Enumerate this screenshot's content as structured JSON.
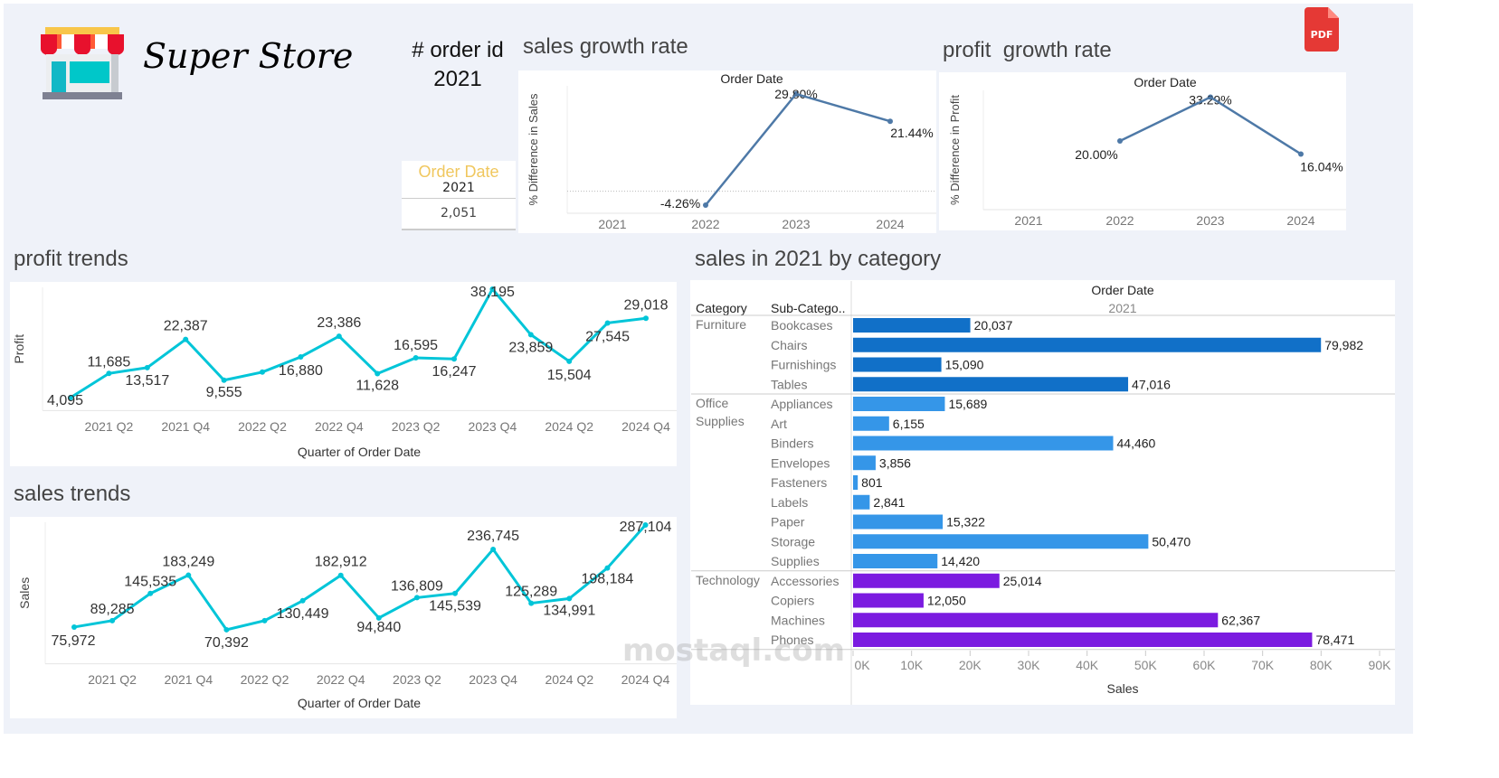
{
  "brand": {
    "title": "Super Store",
    "logo_icon": "storefront-icon"
  },
  "kpi": {
    "label": "# order id",
    "year": "2021",
    "table_header": "Order Date",
    "table_year": "2021",
    "value": "2,051",
    "header_color": "#f0c75e"
  },
  "export": {
    "icon": "pdf-icon",
    "label": "PDF",
    "color": "#e53935"
  },
  "watermark": "mostaql.com",
  "chart_data": [
    {
      "id": "sales_growth",
      "type": "line",
      "title": "sales growth rate",
      "top_label": "Order Date",
      "ylabel": "% Difference in Sales",
      "categories": [
        "2021",
        "2022",
        "2023",
        "2024"
      ],
      "values": [
        null,
        -4.26,
        29.8,
        21.44
      ],
      "labels": [
        "",
        "-4.26%",
        "29.80%",
        "21.44%"
      ],
      "zero_line": true,
      "color": "#4e79a7"
    },
    {
      "id": "profit_growth",
      "type": "line",
      "title": "profit  growth rate",
      "top_label": "Order Date",
      "ylabel": "% Difference in Profit",
      "categories": [
        "2021",
        "2022",
        "2023",
        "2024"
      ],
      "values": [
        null,
        20.0,
        33.29,
        16.04
      ],
      "labels": [
        "",
        "20.00%",
        "33.29%",
        "16.04%"
      ],
      "color": "#4e79a7"
    },
    {
      "id": "profit_trends",
      "type": "line",
      "title": "profit trends",
      "ylabel": "Profit",
      "xlabel": "Quarter of Order Date",
      "tick_labels": [
        "2021 Q2",
        "2021 Q4",
        "2022 Q2",
        "2022 Q4",
        "2023 Q2",
        "2023 Q4",
        "2024 Q2",
        "2024 Q4"
      ],
      "x": [
        "2021 Q1",
        "2021 Q2",
        "2021 Q3",
        "2021 Q4",
        "2022 Q1",
        "2022 Q2",
        "2022 Q3",
        "2022 Q4",
        "2023 Q1",
        "2023 Q2",
        "2023 Q3",
        "2023 Q4",
        "2024 Q1",
        "2024 Q2",
        "2024 Q3",
        "2024 Q4"
      ],
      "values": [
        4095,
        11685,
        13517,
        22387,
        9555,
        12100,
        16880,
        23386,
        11628,
        16595,
        16247,
        38195,
        23859,
        15504,
        27545,
        29018
      ],
      "labels": [
        "4,095",
        "11,685",
        "13,517",
        "22,387",
        "9,555",
        "",
        "16,880",
        "23,386",
        "11,628",
        "16,595",
        "16,247",
        "38,195",
        "23,859",
        "15,504",
        "27,545",
        "29,018"
      ],
      "color": "#00c5d8"
    },
    {
      "id": "sales_trends",
      "type": "line",
      "title": "sales trends",
      "ylabel": "Sales",
      "xlabel": "Quarter of Order Date",
      "tick_labels": [
        "2021 Q2",
        "2021 Q4",
        "2022 Q2",
        "2022 Q4",
        "2023 Q2",
        "2023 Q4",
        "2024 Q2",
        "2024 Q4"
      ],
      "x": [
        "2021 Q1",
        "2021 Q2",
        "2021 Q3",
        "2021 Q4",
        "2022 Q1",
        "2022 Q2",
        "2022 Q3",
        "2022 Q4",
        "2023 Q1",
        "2023 Q2",
        "2023 Q3",
        "2023 Q4",
        "2024 Q1",
        "2024 Q2",
        "2024 Q3",
        "2024 Q4"
      ],
      "values": [
        75972,
        89285,
        145535,
        183249,
        70392,
        89200,
        130449,
        182912,
        94840,
        136809,
        145539,
        236745,
        125289,
        134991,
        198184,
        287104
      ],
      "labels": [
        "75,972",
        "89,285",
        "145,535",
        "183,249",
        "70,392",
        "",
        "130,449",
        "182,912",
        "94,840",
        "136,809",
        "145,539",
        "236,745",
        "125,289",
        "134,991",
        "198,184",
        "287,104"
      ],
      "color": "#00c5d8"
    },
    {
      "id": "sales_by_category",
      "type": "bar",
      "title": "sales in 2021 by category",
      "col_headers": [
        "Category",
        "Sub-Catego.."
      ],
      "top_label": "Order Date",
      "top_year": "2021",
      "xlabel": "Sales",
      "xlim": [
        0,
        90000
      ],
      "ticks": [
        "0K",
        "10K",
        "20K",
        "30K",
        "40K",
        "50K",
        "60K",
        "70K",
        "80K",
        "90K"
      ],
      "groups": [
        {
          "category": "Furniture",
          "color": "#1170c8",
          "items": [
            [
              "Bookcases",
              20037,
              "20,037"
            ],
            [
              "Chairs",
              79982,
              "79,982"
            ],
            [
              "Furnishings",
              15090,
              "15,090"
            ],
            [
              "Tables",
              47016,
              "47,016"
            ]
          ]
        },
        {
          "category": "Office Supplies",
          "color": "#3596e8",
          "items": [
            [
              "Appliances",
              15689,
              "15,689"
            ],
            [
              "Art",
              6155,
              "6,155"
            ],
            [
              "Binders",
              44460,
              "44,460"
            ],
            [
              "Envelopes",
              3856,
              "3,856"
            ],
            [
              "Fasteners",
              801,
              "801"
            ],
            [
              "Labels",
              2841,
              "2,841"
            ],
            [
              "Paper",
              15322,
              "15,322"
            ],
            [
              "Storage",
              50470,
              "50,470"
            ],
            [
              "Supplies",
              14420,
              "14,420"
            ]
          ]
        },
        {
          "category": "Technology",
          "color": "#7b1be0",
          "items": [
            [
              "Accessories",
              25014,
              "25,014"
            ],
            [
              "Copiers",
              12050,
              "12,050"
            ],
            [
              "Machines",
              62367,
              "62,367"
            ],
            [
              "Phones",
              78471,
              "78,471"
            ]
          ]
        }
      ]
    }
  ]
}
